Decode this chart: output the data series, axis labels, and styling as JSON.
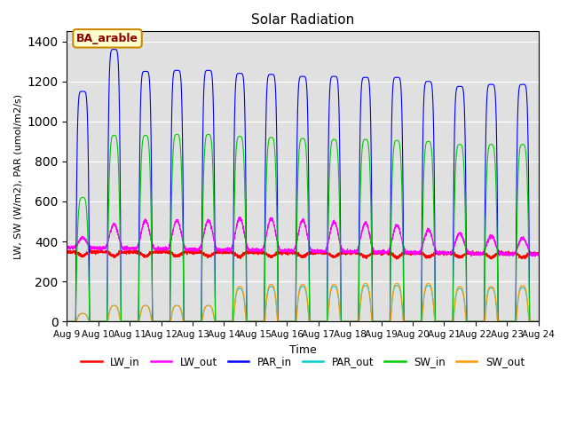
{
  "title": "Solar Radiation",
  "xlabel": "Time",
  "ylabel": "LW, SW (W/m2), PAR (umol/m2/s)",
  "ylim": [
    0,
    1450
  ],
  "yticks": [
    0,
    200,
    400,
    600,
    800,
    1000,
    1200,
    1400
  ],
  "xtick_labels": [
    "Aug 9",
    "Aug 10",
    "Aug 11",
    "Aug 12",
    "Aug 13",
    "Aug 14",
    "Aug 15",
    "Aug 16",
    "Aug 17",
    "Aug 18",
    "Aug 19",
    "Aug 20",
    "Aug 21",
    "Aug 22",
    "Aug 23",
    "Aug 24"
  ],
  "legend_labels": [
    "LW_in",
    "LW_out",
    "PAR_in",
    "PAR_out",
    "SW_in",
    "SW_out"
  ],
  "legend_colors": [
    "#ff0000",
    "#ff00ff",
    "#0000ff",
    "#00cccc",
    "#00cc00",
    "#ff9900"
  ],
  "annotation_text": "BA_arable",
  "bg_color": "#e0e0e0",
  "colors": {
    "LW_in": "#ff0000",
    "LW_out": "#ff00ff",
    "PAR_in": "#0000ff",
    "PAR_out": "#00cccc",
    "SW_in": "#00cc00",
    "SW_out": "#ff9900"
  }
}
